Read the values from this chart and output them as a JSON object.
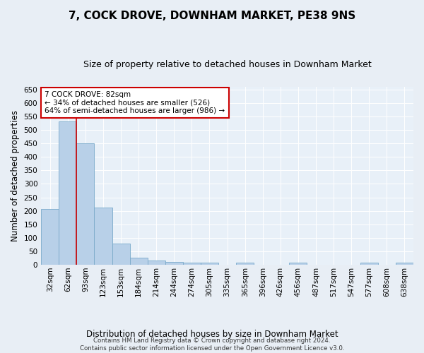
{
  "title": "7, COCK DROVE, DOWNHAM MARKET, PE38 9NS",
  "subtitle": "Size of property relative to detached houses in Downham Market",
  "xlabel": "Distribution of detached houses by size in Downham Market",
  "ylabel": "Number of detached properties",
  "footer": "Contains HM Land Registry data © Crown copyright and database right 2024.\nContains public sector information licensed under the Open Government Licence v3.0.",
  "categories": [
    "32sqm",
    "62sqm",
    "93sqm",
    "123sqm",
    "153sqm",
    "184sqm",
    "214sqm",
    "244sqm",
    "274sqm",
    "305sqm",
    "335sqm",
    "365sqm",
    "396sqm",
    "426sqm",
    "456sqm",
    "487sqm",
    "517sqm",
    "547sqm",
    "577sqm",
    "608sqm",
    "638sqm"
  ],
  "values": [
    208,
    530,
    450,
    213,
    78,
    27,
    15,
    12,
    7,
    8,
    0,
    7,
    0,
    0,
    7,
    0,
    0,
    0,
    7,
    0,
    7
  ],
  "bar_color": "#b8d0e8",
  "bar_edge_color": "#7aaaca",
  "vline_x": 1.5,
  "vline_color": "#cc0000",
  "annotation_text": "7 COCK DROVE: 82sqm\n← 34% of detached houses are smaller (526)\n64% of semi-detached houses are larger (986) →",
  "annotation_box_color": "#ffffff",
  "annotation_box_edge": "#cc0000",
  "ylim": [
    0,
    660
  ],
  "yticks": [
    0,
    50,
    100,
    150,
    200,
    250,
    300,
    350,
    400,
    450,
    500,
    550,
    600,
    650
  ],
  "bg_color": "#e8eef5",
  "plot_bg_color": "#e8f0f8",
  "title_fontsize": 11,
  "subtitle_fontsize": 9,
  "ylabel_fontsize": 8.5,
  "xlabel_fontsize": 8.5,
  "tick_fontsize": 7.5
}
